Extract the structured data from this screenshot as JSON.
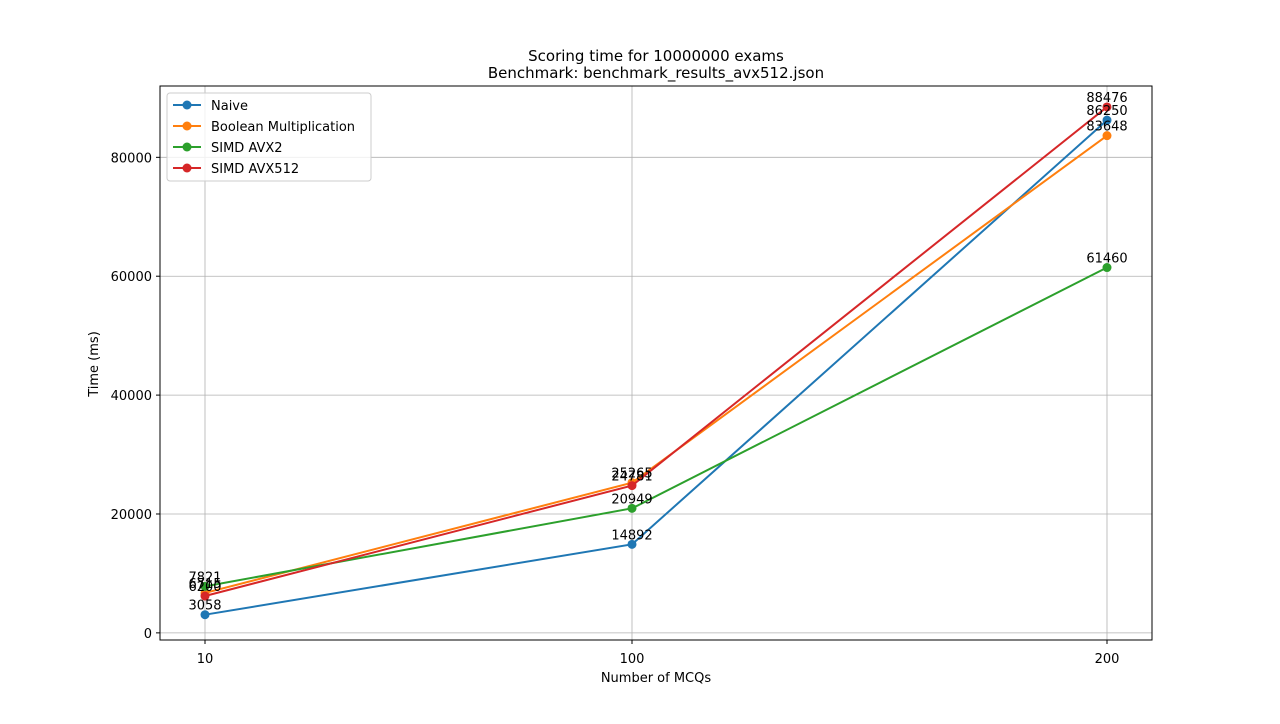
{
  "chart_data": {
    "type": "line",
    "title": "Scoring time for 10000000 exams",
    "subtitle": "Benchmark: benchmark_results_avx512.json",
    "xlabel": "Number of MCQs",
    "ylabel": "Time (ms)",
    "x": [
      10,
      100,
      200
    ],
    "x_scale": "categorical",
    "x_tick_labels": [
      "10",
      "100",
      "200"
    ],
    "ylim": [
      -1200,
      92000
    ],
    "y_ticks": [
      0,
      20000,
      40000,
      60000,
      80000
    ],
    "grid": true,
    "legend_position": "top-left",
    "marker": "circle",
    "series": [
      {
        "name": "Naive",
        "color": "#1f77b4",
        "values": [
          3058,
          14892,
          86250
        ],
        "labels": [
          "3058",
          "14892",
          "86250"
        ]
      },
      {
        "name": "Boolean Multiplication",
        "color": "#ff7f0e",
        "values": [
          6715,
          25265,
          83648
        ],
        "labels": [
          "6715",
          "25265",
          "83648"
        ]
      },
      {
        "name": "SIMD AVX2",
        "color": "#2ca02c",
        "values": [
          7821,
          20949,
          61460
        ],
        "labels": [
          "7821",
          "20949",
          "61460"
        ]
      },
      {
        "name": "SIMD AVX512",
        "color": "#d62728",
        "values": [
          6200,
          24781,
          88476
        ],
        "labels": [
          "6200",
          "24781",
          "88476"
        ]
      }
    ]
  }
}
